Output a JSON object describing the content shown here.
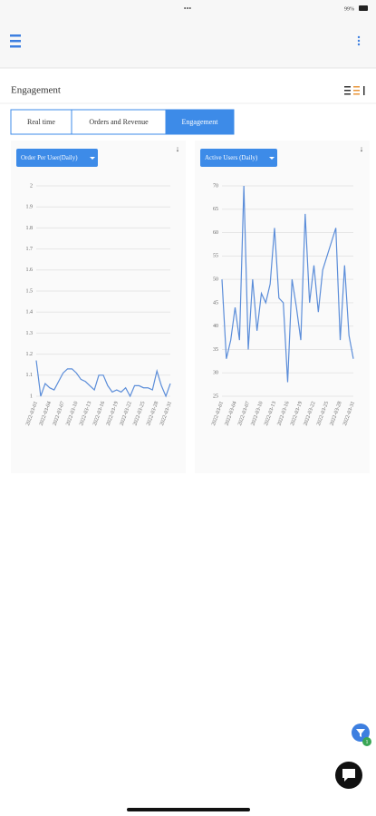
{
  "status_bar": {
    "battery": "99%"
  },
  "header": {
    "title": "Engagement"
  },
  "tabs": [
    {
      "label": "Real time",
      "active": false
    },
    {
      "label": "Orders and Revenue",
      "active": false
    },
    {
      "label": "Engagement",
      "active": true
    }
  ],
  "filter_badge": 1,
  "chart_data": [
    {
      "type": "line",
      "title": "Order Per User(Daily)",
      "color": "#5b8dd9",
      "grid": true,
      "x": [
        "2022-03-01",
        null,
        null,
        "2022-03-04",
        null,
        null,
        "2022-03-07",
        null,
        null,
        "2022-03-10",
        null,
        null,
        "2022-03-13",
        null,
        null,
        "2022-03-16",
        null,
        null,
        "2022-03-19",
        null,
        null,
        "2022-03-22",
        null,
        null,
        "2022-03-25",
        null,
        null,
        "2022-03-28",
        null,
        null,
        "2022-03-31"
      ],
      "values": [
        1.17,
        1.0,
        1.06,
        1.04,
        1.03,
        1.07,
        1.11,
        1.13,
        1.13,
        1.11,
        1.08,
        1.07,
        1.05,
        1.03,
        1.1,
        1.1,
        1.05,
        1.02,
        1.03,
        1.02,
        1.04,
        1.0,
        1.05,
        1.05,
        1.04,
        1.04,
        1.03,
        1.12,
        1.05,
        1.0,
        1.06
      ],
      "ylim": [
        1,
        2
      ],
      "yticks": [
        1,
        1.1,
        1.2,
        1.3,
        1.4,
        1.5,
        1.6,
        1.7,
        1.8,
        1.9,
        2
      ]
    },
    {
      "type": "line",
      "title": "Active Users (Daily)",
      "color": "#5b8dd9",
      "grid": true,
      "x": [
        "2022-03-01",
        null,
        null,
        "2022-03-04",
        null,
        null,
        "2022-03-07",
        null,
        null,
        "2022-03-10",
        null,
        null,
        "2022-03-13",
        null,
        null,
        "2022-03-16",
        null,
        null,
        "2022-03-19",
        null,
        null,
        "2022-03-22",
        null,
        null,
        "2022-03-25",
        null,
        null,
        "2022-03-28",
        null,
        null,
        "2022-03-31"
      ],
      "values": [
        50,
        33,
        37,
        44,
        37,
        70,
        35,
        50,
        39,
        47,
        45,
        49,
        61,
        46,
        45,
        28,
        50,
        44,
        37,
        64,
        45,
        53,
        43,
        52,
        55,
        58,
        61,
        37,
        53,
        38,
        33
      ],
      "ylim": [
        25,
        70
      ],
      "yticks": [
        25,
        30,
        35,
        40,
        45,
        50,
        55,
        60,
        65,
        70
      ]
    }
  ]
}
